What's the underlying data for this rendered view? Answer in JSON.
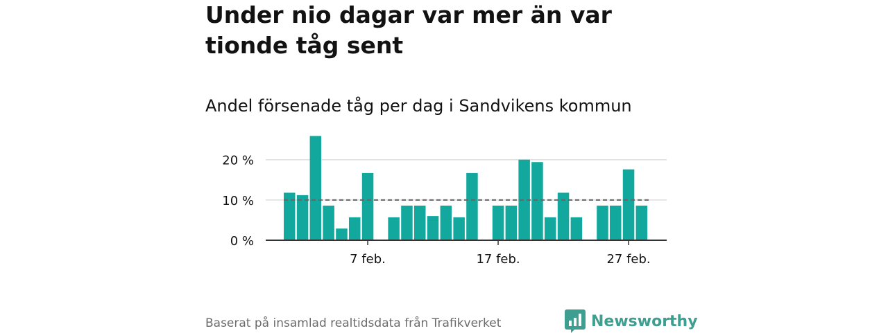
{
  "title": "Under nio dagar var mer än var tionde tåg sent",
  "subtitle": "Andel försenade tåg per dag i Sandvikens kommun",
  "source": "Baserat på insamlad realtidsdata från Trafikverket",
  "logo_text": "Newsworthy",
  "colors": {
    "bar": "#13a89e",
    "grid": "#dddddd",
    "axis": "#333333",
    "reference": "#666666",
    "logo": "#3e9e90"
  },
  "chart_data": {
    "type": "bar",
    "x": [
      "1 feb.",
      "2 feb.",
      "3 feb.",
      "4 feb.",
      "5 feb.",
      "6 feb.",
      "7 feb.",
      "8 feb.",
      "9 feb.",
      "10 feb.",
      "11 feb.",
      "12 feb.",
      "13 feb.",
      "14 feb.",
      "15 feb.",
      "16 feb.",
      "17 feb.",
      "18 feb.",
      "19 feb.",
      "20 feb.",
      "21 feb.",
      "22 feb.",
      "23 feb.",
      "24 feb.",
      "25 feb.",
      "26 feb.",
      "27 feb.",
      "28 feb."
    ],
    "values": [
      11.8,
      11.2,
      25.9,
      8.6,
      2.9,
      5.7,
      16.7,
      null,
      5.7,
      8.6,
      8.6,
      6.0,
      8.6,
      5.7,
      16.7,
      null,
      8.6,
      8.6,
      20.0,
      19.4,
      5.7,
      11.8,
      5.7,
      null,
      8.6,
      8.6,
      17.6,
      8.6
    ],
    "xticks": [
      "7 feb.",
      "17 feb.",
      "27 feb."
    ],
    "xtick_values": [
      "7 feb.",
      "17 feb.",
      "27 feb."
    ],
    "yticks": [
      "0 %",
      "10 %",
      "20 %"
    ],
    "ytick_values": [
      0,
      10,
      20
    ],
    "ylim": [
      0,
      27
    ],
    "reference_line": 10,
    "grid": true
  }
}
